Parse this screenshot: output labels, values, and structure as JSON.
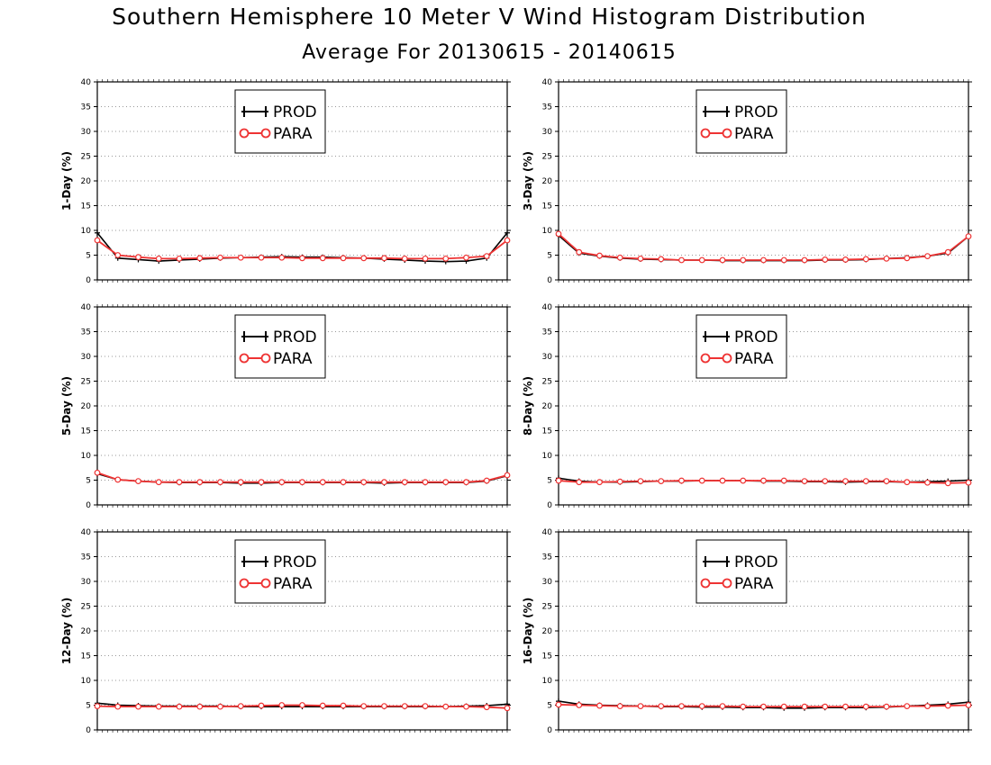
{
  "figure": {
    "title": "Southern Hemisphere 10 Meter V Wind Histogram Distribution",
    "subtitle": "Average For 20130615 - 20140615"
  },
  "colors": {
    "prod": "#000000",
    "para": "#ee3333",
    "grid": "#999999"
  },
  "chart_data": [
    {
      "type": "line",
      "ylabel": "1-Day (%)",
      "ylim": [
        0,
        40
      ],
      "yticks": [
        0,
        5,
        10,
        15,
        20,
        25,
        30,
        35,
        40
      ],
      "x": [
        1,
        2,
        3,
        4,
        5,
        6,
        7,
        8,
        9,
        10,
        11,
        12,
        13,
        14,
        15,
        16,
        17,
        18,
        19,
        20,
        21
      ],
      "grid": true,
      "legend": "top-center",
      "series": [
        {
          "name": "PROD",
          "values": [
            9.5,
            4.4,
            4.1,
            3.8,
            4.0,
            4.2,
            4.4,
            4.5,
            4.6,
            4.7,
            4.6,
            4.6,
            4.5,
            4.4,
            4.2,
            4.0,
            3.8,
            3.7,
            3.8,
            4.4,
            9.5
          ]
        },
        {
          "name": "PARA",
          "values": [
            8.0,
            5.0,
            4.6,
            4.3,
            4.3,
            4.4,
            4.5,
            4.5,
            4.5,
            4.5,
            4.4,
            4.4,
            4.4,
            4.4,
            4.4,
            4.3,
            4.3,
            4.3,
            4.5,
            4.8,
            8.0
          ]
        }
      ]
    },
    {
      "type": "line",
      "ylabel": "3-Day (%)",
      "ylim": [
        0,
        40
      ],
      "yticks": [
        0,
        5,
        10,
        15,
        20,
        25,
        30,
        35,
        40
      ],
      "x": [
        1,
        2,
        3,
        4,
        5,
        6,
        7,
        8,
        9,
        10,
        11,
        12,
        13,
        14,
        15,
        16,
        17,
        18,
        19,
        20,
        21
      ],
      "grid": true,
      "legend": "top-center",
      "series": [
        {
          "name": "PROD",
          "values": [
            9.0,
            5.4,
            4.8,
            4.4,
            4.2,
            4.1,
            4.0,
            4.0,
            3.9,
            3.9,
            3.9,
            3.9,
            3.9,
            4.0,
            4.0,
            4.1,
            4.3,
            4.5,
            4.8,
            5.4,
            8.8
          ]
        },
        {
          "name": "PARA",
          "values": [
            9.3,
            5.6,
            4.9,
            4.5,
            4.3,
            4.2,
            4.0,
            4.0,
            4.0,
            4.0,
            4.0,
            4.0,
            4.0,
            4.1,
            4.1,
            4.2,
            4.3,
            4.4,
            4.8,
            5.6,
            8.8
          ]
        }
      ]
    },
    {
      "type": "line",
      "ylabel": "5-Day (%)",
      "ylim": [
        0,
        40
      ],
      "yticks": [
        0,
        5,
        10,
        15,
        20,
        25,
        30,
        35,
        40
      ],
      "x": [
        1,
        2,
        3,
        4,
        5,
        6,
        7,
        8,
        9,
        10,
        11,
        12,
        13,
        14,
        15,
        16,
        17,
        18,
        19,
        20,
        21
      ],
      "grid": true,
      "legend": "top-center",
      "series": [
        {
          "name": "PROD",
          "values": [
            6.3,
            5.1,
            4.8,
            4.6,
            4.5,
            4.5,
            4.5,
            4.4,
            4.4,
            4.5,
            4.5,
            4.5,
            4.5,
            4.5,
            4.4,
            4.5,
            4.5,
            4.5,
            4.5,
            4.8,
            5.9
          ]
        },
        {
          "name": "PARA",
          "values": [
            6.5,
            5.1,
            4.8,
            4.6,
            4.6,
            4.6,
            4.6,
            4.6,
            4.6,
            4.6,
            4.6,
            4.6,
            4.6,
            4.6,
            4.6,
            4.6,
            4.6,
            4.6,
            4.6,
            4.9,
            6.0
          ]
        }
      ]
    },
    {
      "type": "line",
      "ylabel": "8-Day (%)",
      "ylim": [
        0,
        40
      ],
      "yticks": [
        0,
        5,
        10,
        15,
        20,
        25,
        30,
        35,
        40
      ],
      "x": [
        1,
        2,
        3,
        4,
        5,
        6,
        7,
        8,
        9,
        10,
        11,
        12,
        13,
        14,
        15,
        16,
        17,
        18,
        19,
        20,
        21
      ],
      "grid": true,
      "legend": "top-center",
      "series": [
        {
          "name": "PROD",
          "values": [
            5.4,
            4.8,
            4.6,
            4.6,
            4.7,
            4.8,
            4.8,
            4.9,
            4.9,
            4.9,
            4.8,
            4.8,
            4.7,
            4.7,
            4.6,
            4.7,
            4.7,
            4.6,
            4.7,
            4.8,
            5.0
          ]
        },
        {
          "name": "PARA",
          "values": [
            4.9,
            4.6,
            4.6,
            4.7,
            4.8,
            4.8,
            4.9,
            4.9,
            4.9,
            4.9,
            4.9,
            4.9,
            4.8,
            4.8,
            4.8,
            4.8,
            4.8,
            4.6,
            4.5,
            4.4,
            4.5
          ]
        }
      ]
    },
    {
      "type": "line",
      "ylabel": "12-Day (%)",
      "ylim": [
        0,
        40
      ],
      "yticks": [
        0,
        5,
        10,
        15,
        20,
        25,
        30,
        35,
        40
      ],
      "x": [
        1,
        2,
        3,
        4,
        5,
        6,
        7,
        8,
        9,
        10,
        11,
        12,
        13,
        14,
        15,
        16,
        17,
        18,
        19,
        20,
        21
      ],
      "grid": true,
      "legend": "top-center",
      "series": [
        {
          "name": "PROD",
          "values": [
            5.4,
            5.0,
            4.9,
            4.8,
            4.8,
            4.8,
            4.8,
            4.7,
            4.7,
            4.7,
            4.7,
            4.7,
            4.7,
            4.7,
            4.7,
            4.7,
            4.7,
            4.7,
            4.8,
            4.9,
            5.2
          ]
        },
        {
          "name": "PARA",
          "values": [
            4.8,
            4.7,
            4.7,
            4.7,
            4.7,
            4.7,
            4.7,
            4.8,
            4.9,
            5.0,
            5.0,
            4.9,
            4.9,
            4.8,
            4.8,
            4.8,
            4.8,
            4.7,
            4.7,
            4.6,
            4.4
          ]
        }
      ]
    },
    {
      "type": "line",
      "ylabel": "16-Day (%)",
      "ylim": [
        0,
        40
      ],
      "yticks": [
        0,
        5,
        10,
        15,
        20,
        25,
        30,
        35,
        40
      ],
      "x": [
        1,
        2,
        3,
        4,
        5,
        6,
        7,
        8,
        9,
        10,
        11,
        12,
        13,
        14,
        15,
        16,
        17,
        18,
        19,
        20,
        21
      ],
      "grid": true,
      "legend": "top-center",
      "series": [
        {
          "name": "PROD",
          "values": [
            5.8,
            5.2,
            5.0,
            4.9,
            4.8,
            4.7,
            4.7,
            4.6,
            4.6,
            4.5,
            4.5,
            4.4,
            4.4,
            4.5,
            4.5,
            4.5,
            4.6,
            4.8,
            5.0,
            5.2,
            5.6
          ]
        },
        {
          "name": "PARA",
          "values": [
            5.1,
            5.0,
            4.9,
            4.8,
            4.8,
            4.8,
            4.8,
            4.8,
            4.8,
            4.7,
            4.7,
            4.7,
            4.7,
            4.7,
            4.7,
            4.7,
            4.7,
            4.8,
            4.8,
            4.9,
            5.0
          ]
        }
      ]
    }
  ]
}
